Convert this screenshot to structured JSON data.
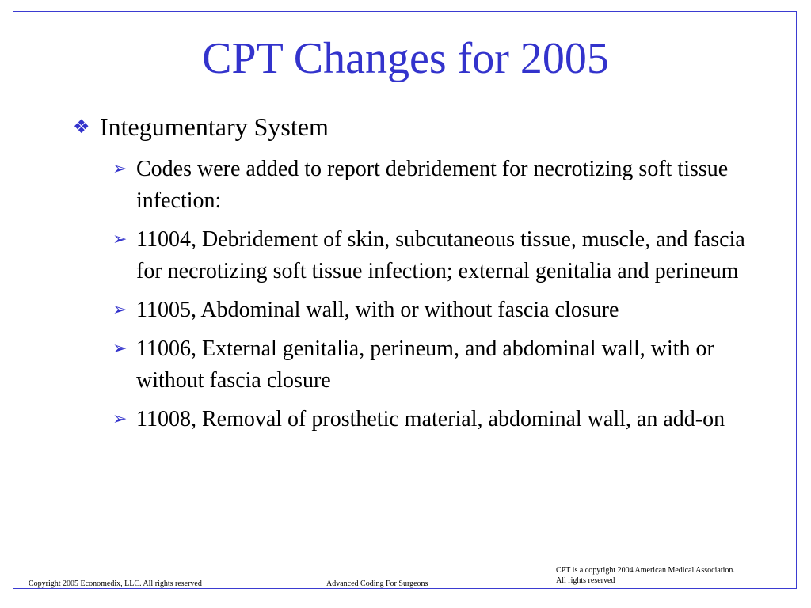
{
  "slide": {
    "title": "CPT Changes for 2005",
    "section": {
      "bullet_icon": "diamond-bullet-icon",
      "label": "Integumentary System"
    },
    "items": [
      {
        "text": "Codes were added to report debridement for necrotizing soft tissue infection:"
      },
      {
        "text": "11004, Debridement of skin, subcutaneous tissue, muscle, and fascia for necrotizing soft tissue infection; external genitalia and perineum"
      },
      {
        "text": "11005, Abdominal wall, with or without fascia closure"
      },
      {
        "text": "11006, External genitalia, perineum, and abdominal wall, with or without fascia closure"
      },
      {
        "text": "11008, Removal of prosthetic material, abdominal wall, an add-on"
      }
    ],
    "item_bullet_icon": "arrow-bullet-icon"
  },
  "footer": {
    "copyright": "Copyright 2005 Economedix, LLC. All rights reserved",
    "course": "Advanced Coding For Surgeons",
    "cpt_notice_line1": "CPT is a copyright 2004 American Medical Association.",
    "cpt_notice_line2": "All rights reserved"
  },
  "colors": {
    "accent": "#3333cc",
    "frame": "#3b3bd1",
    "text": "#000000",
    "background": "#ffffff"
  }
}
